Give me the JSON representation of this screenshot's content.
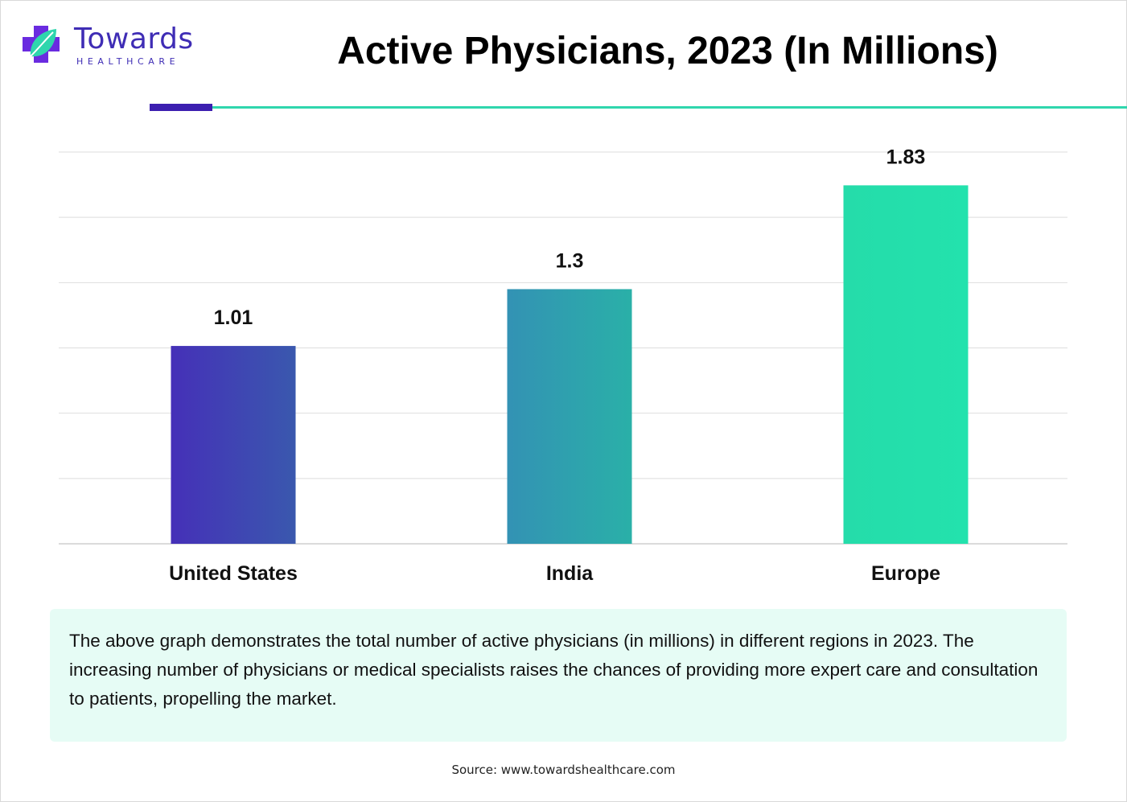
{
  "brand": {
    "name": "Towards",
    "tagline": "HEALTHCARE",
    "primary_color": "#3c1fb0",
    "accent_color": "#2fd6ad"
  },
  "description": "The above graph demonstrates the total number of active physicians (in millions) in different regions in 2023. The increasing number of physicians or medical specialists raises the chances of providing more expert care and consultation to patients, propelling the market.",
  "source": "Source: www.towardshealthcare.com",
  "chart_data": {
    "type": "bar",
    "title": "Active Physicians, 2023 (In Millions)",
    "xlabel": "",
    "ylabel": "",
    "categories": [
      "United States",
      "India",
      "Europe"
    ],
    "values": [
      1.01,
      1.3,
      1.83
    ],
    "data_labels": [
      "1.01",
      "1.3",
      "1.83"
    ],
    "ylim": [
      0,
      2.0
    ],
    "grid": true,
    "colors": [
      [
        "#4530b8",
        "#3a58ae"
      ],
      [
        "#3392b4",
        "#2ab0a8"
      ],
      [
        "#25dcaa",
        "#23e2ad"
      ]
    ]
  }
}
